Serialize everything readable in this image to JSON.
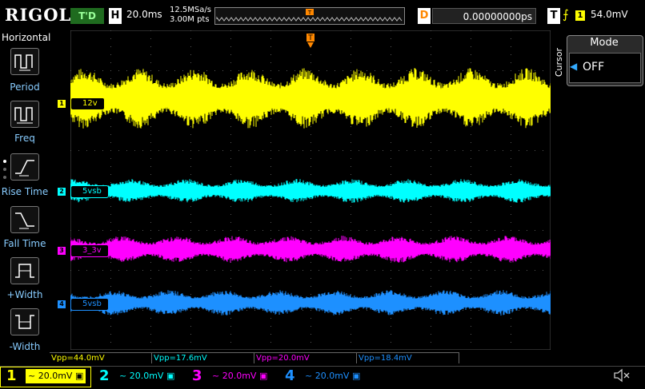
{
  "header": {
    "logo": "RIGOL",
    "trigger_status": "T'D",
    "horizontal_label": "H",
    "timebase": "20.0ms",
    "sample_rate": "12.5MSa/s",
    "memory_depth": "3.00M pts",
    "delay_label": "D",
    "delay_value": "0.00000000ps",
    "trigger_label": "T",
    "trigger_channel": "1",
    "trigger_level": "54.0mV"
  },
  "left_menu": {
    "title": "Horizontal",
    "items": [
      {
        "label": "Period",
        "icon": "period-icon"
      },
      {
        "label": "Freq",
        "icon": "frequency-icon"
      },
      {
        "label": "Rise Time",
        "icon": "rise-time-icon"
      },
      {
        "label": "Fall Time",
        "icon": "fall-time-icon"
      },
      {
        "label": "+Width",
        "icon": "positive-width-icon"
      },
      {
        "label": "-Width",
        "icon": "negative-width-icon"
      }
    ]
  },
  "right_menu": {
    "side_title": "Cursor",
    "mode_label": "Mode",
    "mode_value": "OFF"
  },
  "channels": [
    {
      "num": "1",
      "label": "12v",
      "color": "#ffff00",
      "scale": "20.0mV",
      "vpp": "Vpp=44.0mV"
    },
    {
      "num": "2",
      "label": "5vsb",
      "color": "#00ffff",
      "scale": "20.0mV",
      "vpp": "Vpp=17.6mV"
    },
    {
      "num": "3",
      "label": "3_3v",
      "color": "#ff00ff",
      "scale": "20.0mV",
      "vpp": "Vpp=20.0mV"
    },
    {
      "num": "4",
      "label": "5vsb",
      "color": "#1e90ff",
      "scale": "20.0mV",
      "vpp": "Vpp=18.4mV"
    }
  ],
  "trigger_marker": "T"
}
